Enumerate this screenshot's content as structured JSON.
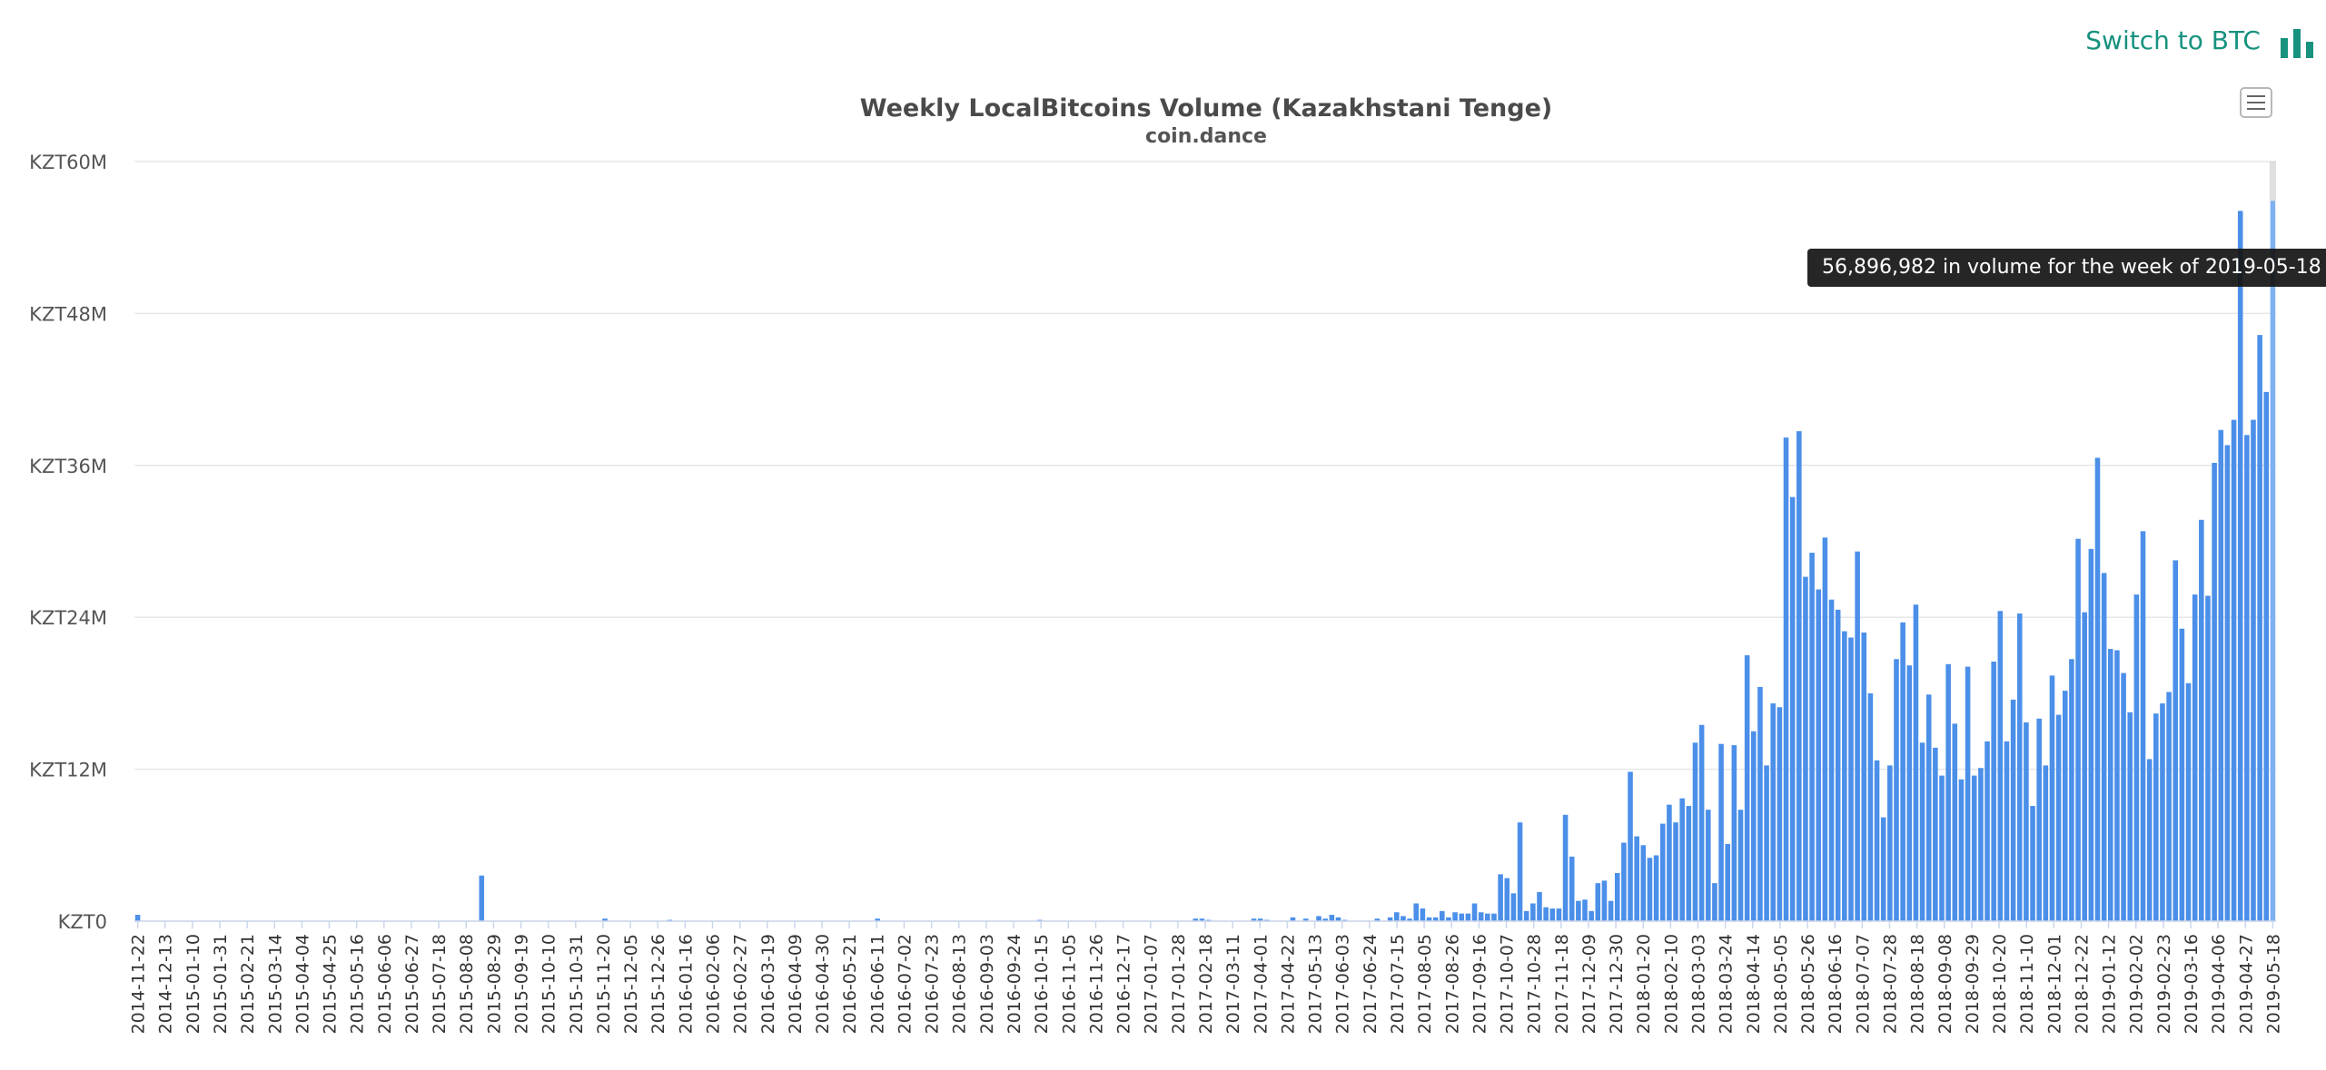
{
  "header": {
    "switch_label": "Switch to BTC",
    "switch_icon": "bar-chart-icon",
    "accent_color": "#17927f"
  },
  "tooltip": {
    "text": "56,896,982 in volume for the week of 2019-05-18"
  },
  "chart_data": {
    "type": "bar",
    "title": "Weekly LocalBitcoins Volume (Kazakhstani Tenge)",
    "subtitle": "coin.dance",
    "bar_color": "#4b8fe9",
    "highlight_color": "#7fb0f0",
    "y_ticks": [
      "KZT0",
      "KZT12M",
      "KZT24M",
      "KZT36M",
      "KZT48M",
      "KZT60M"
    ],
    "y_tick_values": [
      0,
      12,
      24,
      36,
      48,
      60
    ],
    "ylim": [
      0,
      60
    ],
    "units": "millions KZT",
    "start_date": "2014-11-22",
    "x_tick_labels": [
      "2014-11-22",
      "2014-12-13",
      "2015-01-10",
      "2015-01-31",
      "2015-02-21",
      "2015-03-14",
      "2015-04-04",
      "2015-04-25",
      "2015-05-16",
      "2015-06-06",
      "2015-06-27",
      "2015-07-18",
      "2015-08-08",
      "2015-08-29",
      "2015-09-19",
      "2015-10-10",
      "2015-10-31",
      "2015-11-20",
      "2015-12-05",
      "2015-12-26",
      "2016-01-16",
      "2016-02-06",
      "2016-02-27",
      "2016-03-19",
      "2016-04-09",
      "2016-04-30",
      "2016-05-21",
      "2016-06-11",
      "2016-07-02",
      "2016-07-23",
      "2016-08-13",
      "2016-09-03",
      "2016-09-24",
      "2016-10-15",
      "2016-11-05",
      "2016-11-26",
      "2016-12-17",
      "2017-01-07",
      "2017-01-28",
      "2017-02-18",
      "2017-03-11",
      "2017-04-01",
      "2017-04-22",
      "2017-05-13",
      "2017-06-03",
      "2017-06-24",
      "2017-07-15",
      "2017-08-05",
      "2017-08-26",
      "2017-09-16",
      "2017-10-07",
      "2017-10-28",
      "2017-11-18",
      "2017-12-09",
      "2017-12-30",
      "2018-01-20",
      "2018-02-10",
      "2018-03-03",
      "2018-03-24",
      "2018-04-14",
      "2018-05-05",
      "2018-05-26",
      "2018-06-16",
      "2018-07-07",
      "2018-07-28",
      "2018-08-18",
      "2018-09-08",
      "2018-09-29",
      "2018-10-20",
      "2018-11-10",
      "2018-12-01",
      "2018-12-22",
      "2019-01-12",
      "2019-02-02",
      "2019-02-23",
      "2019-03-16",
      "2019-04-06",
      "2019-04-27",
      "2019-05-18"
    ],
    "values": [
      0.5,
      0,
      0,
      0,
      0,
      0,
      0,
      0,
      0,
      0,
      0,
      0,
      0,
      0,
      0,
      0,
      0,
      0,
      0,
      0,
      0,
      0,
      0,
      0,
      0,
      0,
      0,
      0,
      0,
      0,
      0,
      0,
      0,
      0,
      0,
      0,
      0,
      0,
      0,
      0,
      0,
      0,
      0,
      0,
      0,
      0,
      0,
      0,
      0,
      0,
      0,
      0,
      0,
      3.6,
      0,
      0,
      0,
      0,
      0,
      0,
      0,
      0,
      0,
      0,
      0,
      0,
      0,
      0,
      0,
      0,
      0,
      0,
      0.2,
      0,
      0,
      0,
      0,
      0,
      0,
      0,
      0,
      0,
      0.1,
      0,
      0,
      0,
      0,
      0,
      0,
      0,
      0,
      0,
      0,
      0,
      0,
      0,
      0,
      0,
      0,
      0,
      0,
      0,
      0,
      0,
      0,
      0,
      0,
      0,
      0,
      0,
      0,
      0,
      0,
      0,
      0.2,
      0,
      0,
      0,
      0,
      0,
      0,
      0,
      0,
      0,
      0,
      0,
      0,
      0,
      0,
      0,
      0,
      0,
      0,
      0,
      0,
      0,
      0,
      0,
      0,
      0.1,
      0,
      0,
      0,
      0,
      0,
      0,
      0,
      0,
      0,
      0,
      0,
      0,
      0,
      0,
      0,
      0,
      0,
      0,
      0,
      0,
      0,
      0,
      0,
      0.2,
      0.2,
      0.1,
      0,
      0,
      0,
      0,
      0,
      0,
      0.2,
      0.2,
      0.1,
      0,
      0,
      0,
      0.3,
      0,
      0.2,
      0,
      0.4,
      0.2,
      0.5,
      0.3,
      0.1,
      0,
      0,
      0,
      0,
      0.2,
      0,
      0.3,
      0.7,
      0.4,
      0.2,
      1.4,
      1.0,
      0.3,
      0.3,
      0.8,
      0.3,
      0.7,
      0.6,
      0.6,
      1.4,
      0.7,
      0.6,
      0.6,
      3.7,
      3.4,
      2.2,
      7.8,
      0.8,
      1.4,
      2.3,
      1.1,
      1.0,
      1.0,
      8.4,
      5.1,
      1.6,
      1.7,
      0.8,
      3.0,
      3.2,
      1.6,
      3.8,
      6.2,
      11.8,
      6.7,
      6.0,
      5.0,
      5.2,
      7.7,
      9.2,
      7.8,
      9.7,
      9.1,
      14.1,
      15.5,
      8.8,
      3.0,
      14.0,
      6.1,
      13.9,
      8.8,
      21.0,
      15.0,
      18.5,
      12.3,
      17.2,
      16.9,
      38.2,
      33.5,
      38.7,
      27.2,
      29.1,
      26.2,
      30.3,
      25.4,
      24.6,
      22.9,
      22.4,
      29.2,
      22.8,
      18.0,
      12.7,
      8.2,
      12.3,
      20.7,
      23.6,
      20.2,
      25.0,
      14.1,
      17.9,
      13.7,
      11.5,
      20.3,
      15.6,
      11.2,
      20.1,
      11.5,
      12.1,
      14.2,
      20.5,
      24.5,
      14.2,
      17.5,
      24.3,
      15.7,
      9.1,
      16.0,
      12.3,
      19.4,
      16.3,
      18.2,
      20.7,
      30.2,
      24.4,
      29.4,
      36.6,
      27.5,
      21.5,
      21.4,
      19.6,
      16.5,
      25.8,
      30.8,
      12.8,
      16.4,
      17.2,
      18.1,
      28.5,
      23.1,
      18.8,
      25.8,
      31.7,
      25.7,
      36.2,
      38.8,
      37.6,
      39.6,
      56.1,
      38.4,
      39.6,
      46.3,
      41.8,
      56.9
    ]
  }
}
